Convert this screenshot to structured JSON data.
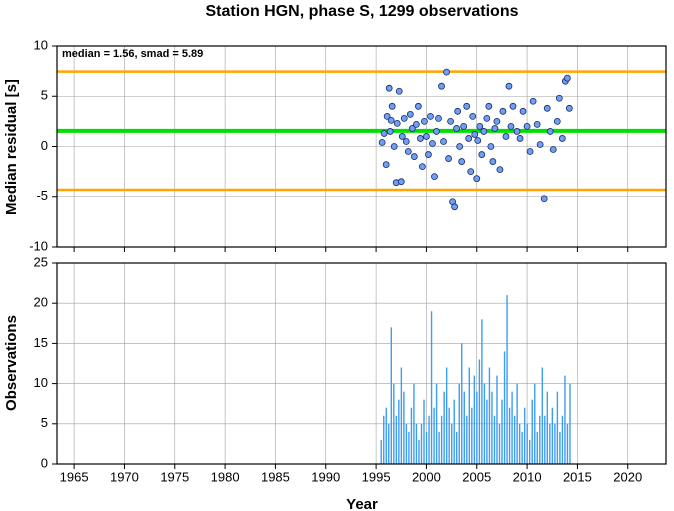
{
  "chart_data": [
    {
      "type": "scatter",
      "title": "Station HGN, phase S, 1299 observations",
      "ylabel": "Median residual [s]",
      "annotation": "median = 1.56, smad = 5.89",
      "xlim": [
        1963.3,
        2023.8
      ],
      "xticks": [
        1965,
        1970,
        1975,
        1980,
        1985,
        1990,
        1995,
        2000,
        2005,
        2010,
        2015,
        2020
      ],
      "ylim": [
        -10,
        10
      ],
      "yticks": [
        -10,
        -5,
        0,
        5,
        10
      ],
      "grid": true,
      "reference_lines": [
        {
          "value": 1.56,
          "color": "#00e000"
        },
        {
          "value": 7.45,
          "color": "#ffa500"
        },
        {
          "value": -4.33,
          "color": "#ffa500"
        }
      ],
      "series": [
        {
          "color": "#6f9ff0",
          "x": [
            1995.6,
            1995.8,
            1996.0,
            1996.1,
            1996.3,
            1996.4,
            1996.5,
            1996.6,
            1996.8,
            1997.0,
            1997.1,
            1997.3,
            1997.5,
            1997.6,
            1997.8,
            1998.0,
            1998.2,
            1998.4,
            1998.6,
            1998.8,
            1999.0,
            1999.2,
            1999.4,
            1999.6,
            1999.8,
            2000.0,
            2000.2,
            2000.4,
            2000.6,
            2000.8,
            2001.0,
            2001.2,
            2001.5,
            2001.7,
            2002.0,
            2002.2,
            2002.4,
            2002.6,
            2002.8,
            2003.0,
            2003.1,
            2003.3,
            2003.5,
            2003.7,
            2004.0,
            2004.2,
            2004.4,
            2004.6,
            2004.8,
            2005.0,
            2005.1,
            2005.3,
            2005.5,
            2005.7,
            2006.0,
            2006.2,
            2006.4,
            2006.6,
            2006.8,
            2007.0,
            2007.3,
            2007.6,
            2007.9,
            2008.2,
            2008.4,
            2008.6,
            2009.0,
            2009.3,
            2009.6,
            2010.0,
            2010.3,
            2010.6,
            2011.0,
            2011.3,
            2011.7,
            2012.0,
            2012.3,
            2012.6,
            2013.0,
            2013.2,
            2013.5,
            2013.8,
            2014.0,
            2014.2
          ],
          "values": [
            0.4,
            1.3,
            -1.8,
            3.0,
            5.8,
            1.5,
            2.6,
            4.0,
            0.0,
            -3.6,
            2.3,
            5.5,
            -3.5,
            1.0,
            2.8,
            0.5,
            -0.5,
            3.2,
            1.8,
            -1.0,
            2.2,
            4.0,
            0.8,
            -2.0,
            2.5,
            1.0,
            -0.8,
            3.0,
            0.3,
            -3.0,
            1.5,
            2.8,
            6.0,
            0.5,
            7.4,
            -1.2,
            2.5,
            -5.5,
            -6.0,
            1.8,
            3.5,
            0.0,
            -1.5,
            2.0,
            4.0,
            0.8,
            -2.5,
            3.0,
            1.2,
            -3.2,
            0.6,
            2.0,
            -0.8,
            1.5,
            2.8,
            4.0,
            0.0,
            -1.5,
            1.8,
            2.5,
            -2.3,
            3.5,
            1.0,
            6.0,
            2.0,
            4.0,
            1.5,
            0.8,
            3.5,
            2.0,
            -0.5,
            4.5,
            2.2,
            0.2,
            -5.2,
            3.8,
            1.5,
            -0.3,
            2.5,
            4.8,
            0.8,
            6.5,
            6.8,
            3.8
          ]
        }
      ]
    },
    {
      "type": "bar",
      "xlabel": "Year",
      "ylabel": "Observations",
      "xlim": [
        1963.3,
        2023.8
      ],
      "xticks": [
        1965,
        1970,
        1975,
        1980,
        1985,
        1990,
        1995,
        2000,
        2005,
        2010,
        2015,
        2020
      ],
      "ylim": [
        0,
        25
      ],
      "yticks": [
        0,
        5,
        10,
        15,
        20,
        25
      ],
      "grid": true,
      "series": [
        {
          "color": "#3d9df0",
          "x": [
            1995.5,
            1995.75,
            1996.0,
            1996.25,
            1996.5,
            1996.75,
            1997.0,
            1997.25,
            1997.5,
            1997.75,
            1998.0,
            1998.25,
            1998.5,
            1998.75,
            1999.0,
            1999.25,
            1999.5,
            1999.75,
            2000.0,
            2000.25,
            2000.5,
            2000.75,
            2001.0,
            2001.25,
            2001.5,
            2001.75,
            2002.0,
            2002.25,
            2002.5,
            2002.75,
            2003.0,
            2003.25,
            2003.5,
            2003.75,
            2004.0,
            2004.25,
            2004.5,
            2004.75,
            2005.0,
            2005.25,
            2005.5,
            2005.75,
            2006.0,
            2006.25,
            2006.5,
            2006.75,
            2007.0,
            2007.25,
            2007.5,
            2007.75,
            2008.0,
            2008.25,
            2008.5,
            2008.75,
            2009.0,
            2009.25,
            2009.5,
            2009.75,
            2010.0,
            2010.25,
            2010.5,
            2010.75,
            2011.0,
            2011.25,
            2011.5,
            2011.75,
            2012.0,
            2012.25,
            2012.5,
            2012.75,
            2013.0,
            2013.25,
            2013.5,
            2013.75,
            2014.0,
            2014.25
          ],
          "values": [
            3,
            6,
            7,
            5,
            17,
            10,
            6,
            8,
            12,
            9,
            5,
            4,
            7,
            10,
            5,
            3,
            5,
            8,
            4,
            6,
            19,
            7,
            10,
            4,
            6,
            9,
            12,
            7,
            5,
            8,
            4,
            10,
            15,
            9,
            6,
            12,
            7,
            11,
            9,
            13,
            18,
            10,
            8,
            12,
            9,
            6,
            11,
            5,
            8,
            14,
            21,
            7,
            9,
            6,
            10,
            5,
            4,
            7,
            5,
            3,
            8,
            10,
            4,
            6,
            12,
            6,
            9,
            5,
            7,
            5,
            9,
            4,
            6,
            11,
            5,
            10
          ]
        }
      ]
    }
  ]
}
